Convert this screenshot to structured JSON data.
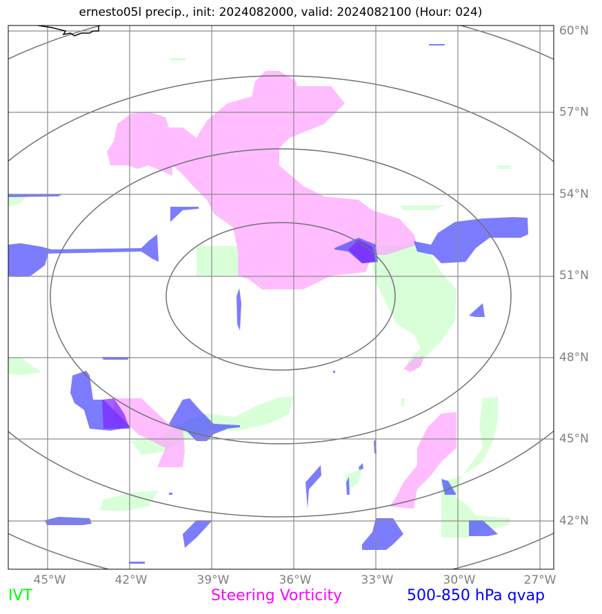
{
  "title": "ernesto05l precip., init: 2024082000, valid: 2024082100 (Hour: 024)",
  "lat_labels": [
    "60°N",
    "57°N",
    "54°N",
    "51°N",
    "48°N",
    "45°N",
    "42°N"
  ],
  "lon_labels": [
    "45°W",
    "42°W",
    "39°W",
    "36°W",
    "33°W",
    "30°W",
    "27°W"
  ],
  "legend": {
    "ivt": {
      "label": "IVT",
      "color": "#00ff00"
    },
    "vorticity": {
      "label": "Steering Vorticity",
      "color": "#ff00ff"
    },
    "qvap": {
      "label": "500-850 hPa qvap",
      "color": "#0000ff"
    }
  },
  "colors": {
    "ivt_fill": "#ccffcc",
    "vorticity_fill": "#ff99ff",
    "qvap_fill": "#4444ff",
    "grid": "#808080",
    "range_ring": "#707070"
  }
}
